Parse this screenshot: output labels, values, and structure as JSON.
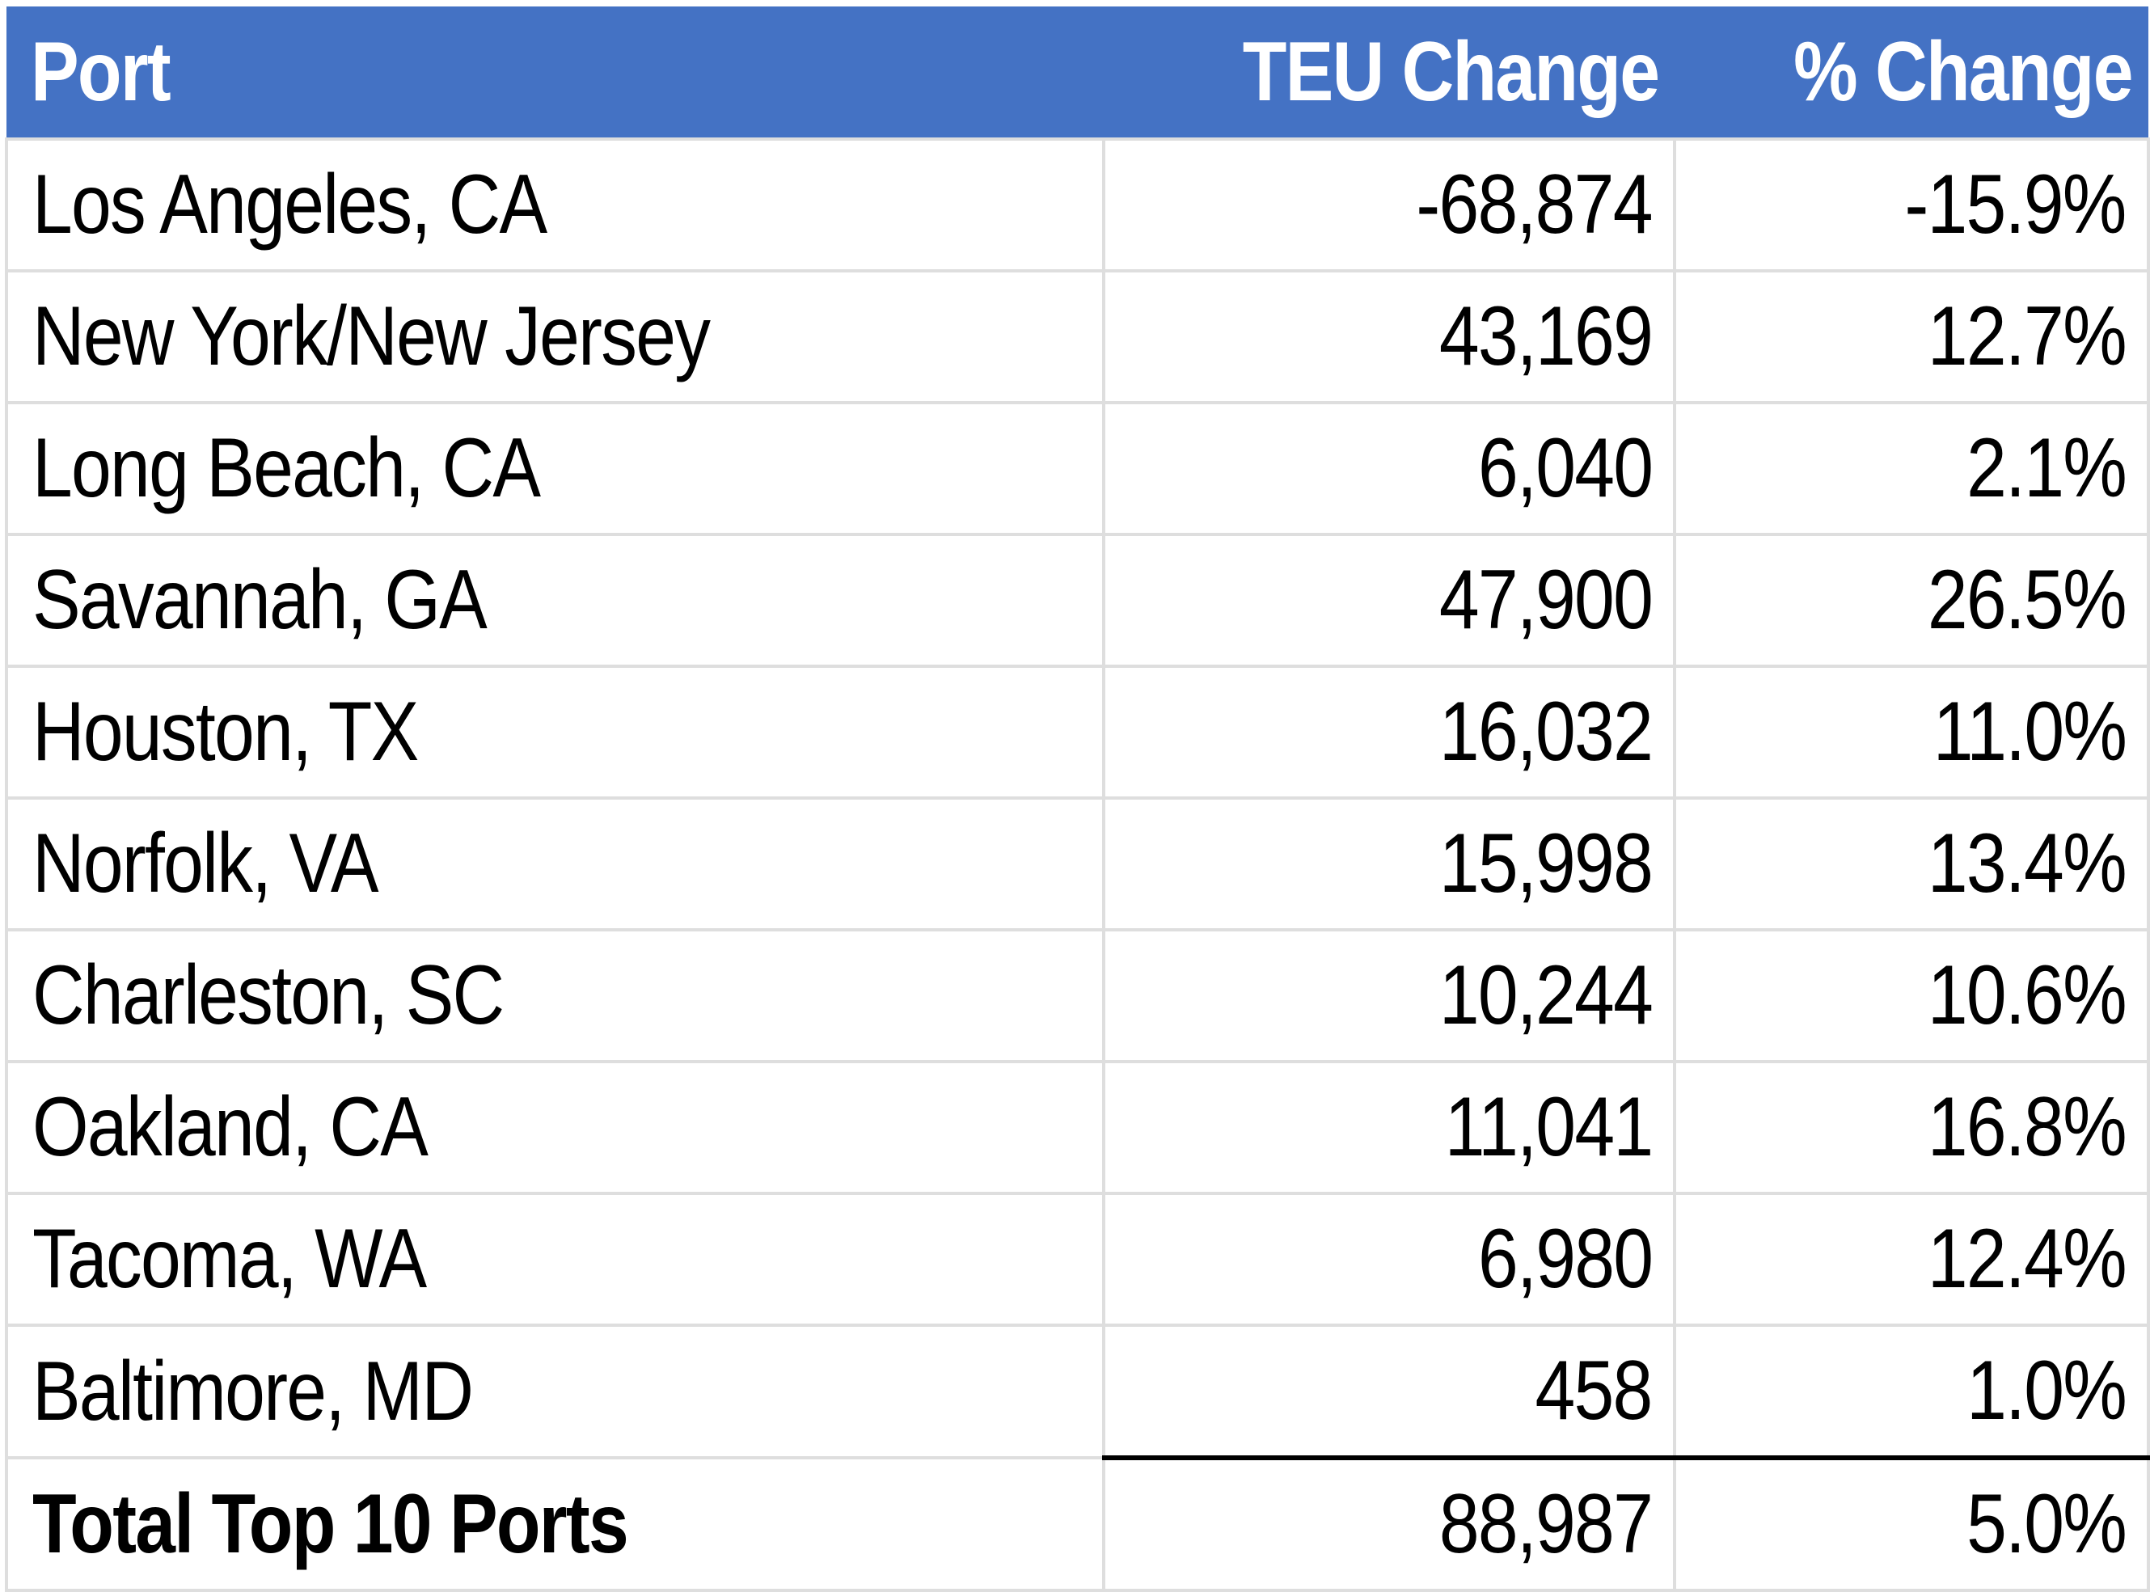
{
  "table": {
    "header_color": "#4472C4",
    "columns": [
      "Port",
      "TEU Change",
      "% Change"
    ],
    "rows": [
      {
        "port": "Los Angeles, CA",
        "teu_change": "-68,874",
        "pct_change": "-15.9%"
      },
      {
        "port": "New York/New Jersey",
        "teu_change": "43,169",
        "pct_change": "12.7%"
      },
      {
        "port": "Long Beach, CA",
        "teu_change": "6,040",
        "pct_change": "2.1%"
      },
      {
        "port": "Savannah, GA",
        "teu_change": "47,900",
        "pct_change": "26.5%"
      },
      {
        "port": "Houston, TX",
        "teu_change": "16,032",
        "pct_change": "11.0%"
      },
      {
        "port": "Norfolk, VA",
        "teu_change": "15,998",
        "pct_change": "13.4%"
      },
      {
        "port": "Charleston, SC",
        "teu_change": "10,244",
        "pct_change": "10.6%"
      },
      {
        "port": "Oakland, CA",
        "teu_change": "11,041",
        "pct_change": "16.8%"
      },
      {
        "port": "Tacoma, WA",
        "teu_change": "6,980",
        "pct_change": "12.4%"
      },
      {
        "port": "Baltimore, MD",
        "teu_change": "458",
        "pct_change": "1.0%"
      }
    ],
    "total": {
      "port": "Total Top 10 Ports",
      "teu_change": "88,987",
      "pct_change": "5.0%"
    }
  }
}
